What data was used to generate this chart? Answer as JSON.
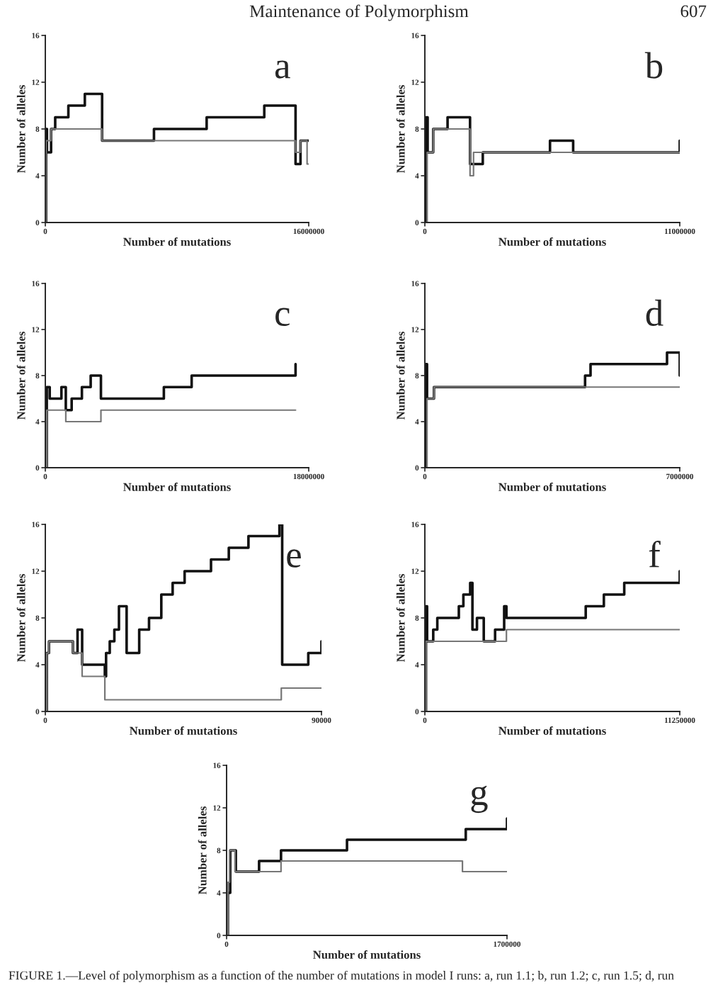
{
  "chart_data": [
    {
      "type": "step",
      "title": "a",
      "xlabel": "Number of mutations",
      "ylabel": "Number of alleles",
      "annotations": [
        "Maintenance of Polymorphism",
        "607"
      ],
      "xlim": [
        0,
        16000000
      ],
      "xticks": [
        0,
        16000000
      ],
      "ylim": [
        0,
        16
      ],
      "yticks": [
        0,
        4,
        8,
        12,
        16
      ],
      "grid": false,
      "legend": false,
      "series": [
        {
          "color": "#111111",
          "x": [
            0,
            50000,
            100000,
            350000,
            600000,
            1400000,
            2400000,
            3450000,
            6600000,
            9800000,
            13300000,
            15200000,
            15500000,
            15800000,
            16000000
          ],
          "values": [
            0,
            8,
            6,
            8,
            9,
            10,
            11,
            7,
            8,
            9,
            10,
            5,
            7,
            7,
            7
          ]
        },
        {
          "color": "#777777",
          "x": [
            0,
            50000,
            350000,
            3450000,
            15200000,
            15500000,
            15900000,
            16000000
          ],
          "values": [
            0,
            7,
            8,
            7,
            6,
            7,
            5,
            5
          ]
        }
      ]
    },
    {
      "type": "step",
      "title": "b",
      "xlabel": "Number of mutations",
      "ylabel": "Number of alleles",
      "xlim": [
        0,
        11000000
      ],
      "xticks": [
        0,
        11000000
      ],
      "ylim": [
        0,
        16
      ],
      "yticks": [
        0,
        4,
        8,
        12,
        16
      ],
      "grid": false,
      "legend": false,
      "series": [
        {
          "color": "#111111",
          "x": [
            0,
            50000,
            120000,
            360000,
            980000,
            1950000,
            2500000,
            5400000,
            6400000,
            11000000
          ],
          "values": [
            0,
            9,
            6,
            8,
            9,
            5,
            6,
            7,
            6,
            7
          ]
        },
        {
          "color": "#777777",
          "x": [
            0,
            100000,
            360000,
            1950000,
            2100000,
            11000000
          ],
          "values": [
            0,
            6,
            8,
            4,
            6,
            6
          ]
        }
      ]
    },
    {
      "type": "step",
      "title": "c",
      "xlabel": "Number of mutations",
      "ylabel": "Number of alleles",
      "xlim": [
        0,
        18000000
      ],
      "xticks": [
        0,
        18000000
      ],
      "ylim": [
        0,
        16
      ],
      "yticks": [
        0,
        4,
        8,
        12,
        16
      ],
      "grid": false,
      "legend": false,
      "series": [
        {
          "color": "#111111",
          "x": [
            0,
            100000,
            300000,
            1100000,
            1400000,
            1800000,
            2100000,
            2500000,
            3100000,
            3800000,
            8100000,
            10000000,
            17100000
          ],
          "values": [
            0,
            7,
            6,
            7,
            5,
            6,
            6,
            7,
            8,
            6,
            7,
            8,
            9
          ]
        },
        {
          "color": "#777777",
          "x": [
            0,
            100000,
            1400000,
            3800000,
            17100000
          ],
          "values": [
            0,
            5,
            4,
            5,
            5
          ]
        }
      ]
    },
    {
      "type": "step",
      "title": "d",
      "xlabel": "Number of mutations",
      "ylabel": "Number of alleles",
      "xlim": [
        0,
        7000000
      ],
      "xticks": [
        0,
        7000000
      ],
      "ylim": [
        0,
        16
      ],
      "yticks": [
        0,
        4,
        8,
        12,
        16
      ],
      "grid": false,
      "legend": false,
      "series": [
        {
          "color": "#111111",
          "x": [
            0,
            30000,
            60000,
            250000,
            4400000,
            4550000,
            6650000,
            7000000
          ],
          "values": [
            0,
            9,
            6,
            7,
            8,
            9,
            10,
            8
          ]
        },
        {
          "color": "#777777",
          "x": [
            0,
            60000,
            250000,
            7000000
          ],
          "values": [
            0,
            6,
            7,
            7
          ]
        }
      ]
    },
    {
      "type": "step",
      "title": "e",
      "xlabel": "Number of mutations",
      "ylabel": "Number of alleles",
      "xlim": [
        0,
        90000
      ],
      "xticks": [
        0,
        90000
      ],
      "ylim": [
        0,
        16
      ],
      "yticks": [
        0,
        4,
        8,
        12,
        16
      ],
      "grid": false,
      "legend": false,
      "series": [
        {
          "color": "#111111",
          "x": [
            0,
            500,
            1200,
            9000,
            10500,
            12000,
            19400,
            19800,
            21000,
            22500,
            24000,
            26500,
            30600,
            33800,
            37800,
            41500,
            45400,
            54000,
            59800,
            66200,
            76300,
            77200,
            85700,
            90000
          ],
          "values": [
            0,
            5,
            6,
            5,
            7,
            4,
            3,
            5,
            6,
            7,
            9,
            5,
            7,
            8,
            10,
            11,
            12,
            13,
            14,
            15,
            16,
            4,
            5,
            6
          ]
        },
        {
          "color": "#777777",
          "x": [
            0,
            500,
            1200,
            9000,
            12000,
            19400,
            76900,
            90000
          ],
          "values": [
            0,
            5,
            6,
            5,
            3,
            1,
            2,
            2
          ]
        }
      ]
    },
    {
      "type": "step",
      "title": "f",
      "xlabel": "Number of mutations",
      "ylabel": "Number of alleles",
      "xlim": [
        0,
        11250000
      ],
      "xticks": [
        0,
        11250000
      ],
      "ylim": [
        0,
        16
      ],
      "yticks": [
        0,
        4,
        8,
        12,
        16
      ],
      "grid": false,
      "legend": false,
      "series": [
        {
          "color": "#111111",
          "x": [
            0,
            50000,
            100000,
            370000,
            550000,
            1500000,
            1700000,
            2000000,
            2100000,
            2300000,
            2600000,
            3100000,
            3500000,
            3600000,
            3700000,
            7100000,
            7900000,
            8800000,
            11250000
          ],
          "values": [
            0,
            9,
            6,
            7,
            8,
            9,
            10,
            11,
            7,
            8,
            6,
            7,
            9,
            8,
            8,
            9,
            10,
            11,
            12
          ]
        },
        {
          "color": "#777777",
          "x": [
            0,
            50000,
            3600000,
            11250000
          ],
          "values": [
            0,
            6,
            7,
            7
          ]
        }
      ]
    },
    {
      "type": "step",
      "title": "g",
      "xlabel": "Number of mutations",
      "ylabel": "Number of alleles",
      "annotations": [
        "FIGURE 1.—Level of polymorphism as a function of the number of mutations in model I runs: a, run 1.1; b, run 1.2; c, run 1.5; d, run"
      ],
      "xlim": [
        0,
        1700000
      ],
      "xticks": [
        0,
        1700000
      ],
      "ylim": [
        0,
        16
      ],
      "yticks": [
        0,
        4,
        8,
        12,
        16
      ],
      "grid": false,
      "legend": false,
      "series": [
        {
          "color": "#111111",
          "x": [
            0,
            8000,
            22000,
            56000,
            93000,
            197000,
            330000,
            730000,
            1450000,
            1700000
          ],
          "values": [
            0,
            4,
            8,
            6,
            6,
            7,
            8,
            9,
            10,
            11
          ]
        },
        {
          "color": "#777777",
          "x": [
            0,
            8000,
            18000,
            51000,
            330000,
            1430000,
            1700000
          ],
          "values": [
            0,
            5,
            8,
            6,
            7,
            6,
            6
          ]
        }
      ]
    }
  ]
}
